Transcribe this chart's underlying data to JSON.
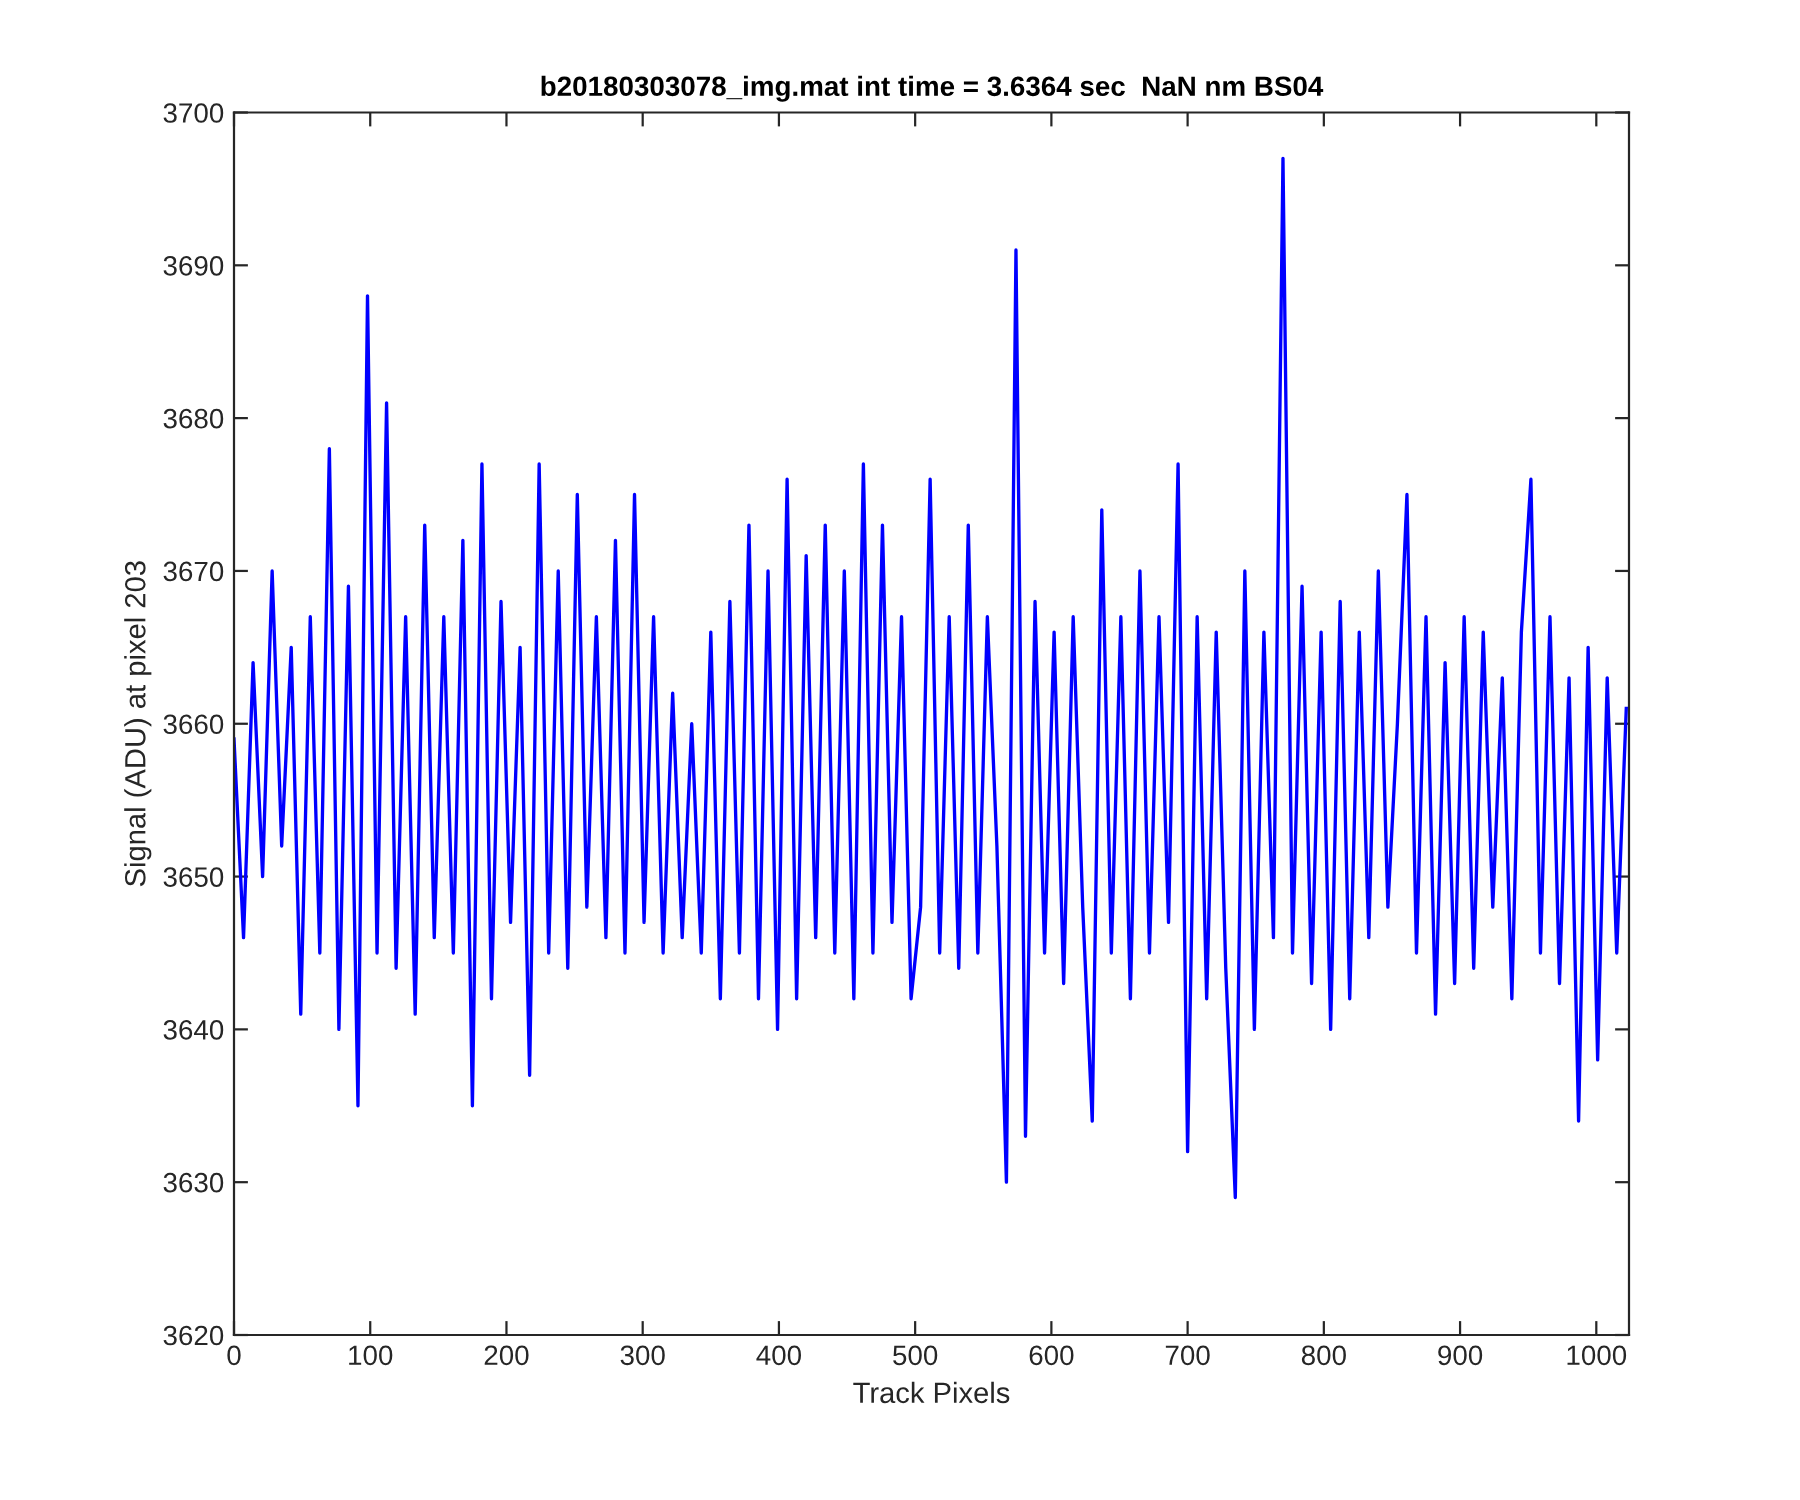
{
  "chart_data": {
    "type": "line",
    "title": "b20180303078_img.mat int time = 3.6364 sec  NaN nm BS04",
    "xlabel": "Track Pixels",
    "ylabel": "Signal (ADU) at pixel 203",
    "xlim": [
      0,
      1024
    ],
    "xticks": [
      0,
      100,
      200,
      300,
      400,
      500,
      600,
      700,
      800,
      900,
      1000
    ],
    "ylim": [
      3620,
      3700
    ],
    "yticks": [
      3620,
      3630,
      3640,
      3650,
      3660,
      3670,
      3680,
      3690,
      3700
    ],
    "line_style": "solid",
    "series": [
      {
        "color": "#0000ff",
        "x": [
          0,
          7,
          14,
          21,
          28,
          35,
          42,
          49,
          56,
          63,
          70,
          77,
          84,
          91,
          98,
          105,
          112,
          119,
          126,
          133,
          140,
          147,
          154,
          161,
          168,
          175,
          182,
          189,
          196,
          203,
          210,
          217,
          224,
          231,
          238,
          245,
          252,
          259,
          266,
          273,
          280,
          287,
          294,
          301,
          308,
          315,
          322,
          329,
          336,
          343,
          350,
          357,
          364,
          371,
          378,
          385,
          392,
          399,
          406,
          413,
          420,
          427,
          434,
          441,
          448,
          455,
          462,
          469,
          476,
          483,
          490,
          497,
          504,
          511,
          518,
          525,
          532,
          539,
          546,
          553,
          560,
          567,
          574,
          581,
          588,
          595,
          602,
          609,
          616,
          623,
          630,
          637,
          644,
          651,
          658,
          665,
          672,
          679,
          686,
          693,
          700,
          707,
          714,
          721,
          728,
          735,
          742,
          749,
          756,
          763,
          770,
          777,
          784,
          791,
          798,
          805,
          812,
          819,
          826,
          833,
          840,
          847,
          854,
          861,
          868,
          875,
          882,
          889,
          896,
          903,
          910,
          917,
          924,
          931,
          938,
          945,
          952,
          959,
          966,
          973,
          980,
          987,
          994,
          1001,
          1008,
          1015,
          1022
        ],
        "values": [
          3659,
          3646,
          3664,
          3650,
          3670,
          3652,
          3665,
          3641,
          3667,
          3645,
          3678,
          3640,
          3669,
          3635,
          3688,
          3645,
          3681,
          3644,
          3667,
          3641,
          3673,
          3646,
          3667,
          3645,
          3672,
          3635,
          3677,
          3642,
          3668,
          3647,
          3665,
          3637,
          3677,
          3645,
          3670,
          3644,
          3675,
          3648,
          3667,
          3646,
          3672,
          3645,
          3675,
          3647,
          3667,
          3645,
          3662,
          3646,
          3660,
          3645,
          3666,
          3642,
          3668,
          3645,
          3673,
          3642,
          3670,
          3640,
          3676,
          3642,
          3671,
          3646,
          3673,
          3645,
          3670,
          3642,
          3677,
          3645,
          3673,
          3647,
          3667,
          3642,
          3648,
          3676,
          3645,
          3667,
          3644,
          3673,
          3645,
          3667,
          3652,
          3630,
          3691,
          3633,
          3668,
          3645,
          3666,
          3643,
          3667,
          3648,
          3634,
          3674,
          3645,
          3667,
          3642,
          3670,
          3645,
          3667,
          3647,
          3677,
          3632,
          3667,
          3642,
          3666,
          3644,
          3629,
          3670,
          3640,
          3666,
          3646,
          3697,
          3645,
          3669,
          3643,
          3666,
          3640,
          3668,
          3642,
          3666,
          3646,
          3670,
          3648,
          3660,
          3675,
          3645,
          3667,
          3641,
          3664,
          3643,
          3667,
          3644,
          3666,
          3648,
          3663,
          3642,
          3666,
          3676,
          3645,
          3667,
          3643,
          3663,
          3634,
          3665,
          3638,
          3663,
          3645,
          3661
        ]
      }
    ]
  }
}
